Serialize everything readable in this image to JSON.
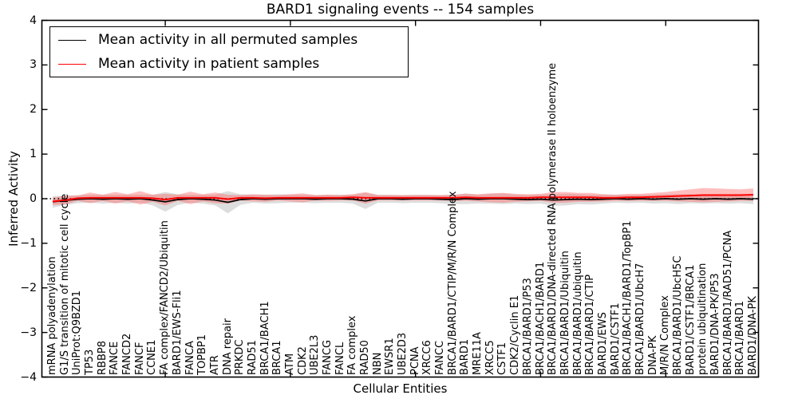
{
  "chart_data": {
    "type": "line",
    "title": "BARD1 signaling events -- 154 samples",
    "xlabel": "Cellular Entities",
    "ylabel": "Inferred Activity",
    "ylim": [
      -4,
      4
    ],
    "yticks": [
      4,
      3,
      2,
      1,
      0,
      -1,
      -2,
      -3,
      -4
    ],
    "ytick_labels": [
      "4",
      "3",
      "2",
      "1",
      "0",
      "−1",
      "−2",
      "−3",
      "−4"
    ],
    "x_major_ticks": [
      10,
      20,
      30,
      40,
      50
    ],
    "grid": false,
    "legend_position": "upper left",
    "zero_line": {
      "value": 0,
      "style": "dotted",
      "color": "#000000"
    },
    "categories": [
      "mRNA polyadenylation",
      "G1/S transition of mitotic cell cycle",
      "UniProt:Q9BZD1",
      "TP53",
      "RBBP8",
      "FANCE",
      "FANCD2",
      "FANCF",
      "CCNE1",
      "FA complex/FANCD2/Ubiquitin",
      "BARD1/EWS-Fli1",
      "FANCA",
      "TOPBP1",
      "ATR",
      "DNA repair",
      "PRKDC",
      "RAD51",
      "BRCA1/BACH1",
      "BRCA1",
      "ATM",
      "CDK2",
      "UBE2L3",
      "FANCG",
      "FANCL",
      "FA complex",
      "RAD50",
      "NBN",
      "EWSR1",
      "UBE2D3",
      "PCNA",
      "XRCC6",
      "FANCC",
      "BRCA1/BARD1/CTIP/M/R/N Complex",
      "BARD1",
      "MRE11A",
      "XRCC5",
      "CSTF1",
      "CDK2/Cyclin E1",
      "BRCA1/BARD1/P53",
      "BRCA1/BACH1/BARD1",
      "BRCA1/BARD1/DNA-directed RNA polymerase II holoenzyme",
      "BRCA1/BARD1/Ubiquitin",
      "BRCA1/BARD1/ubiquitin",
      "BRCA1/BARD1/CTIP",
      "BARD1/EWS",
      "BARD1/CSTF1",
      "BRCA1/BACH1/BARD1/TopBP1",
      "BRCA1/BARD1/UbcH7",
      "DNA-PK",
      "M/R/N Complex",
      "BRCA1/BARD1/UbcH5C",
      "BARD1/CSTF1/BRCA1",
      "protein ubiquitination",
      "BARD1/DNA-PK/P53",
      "BRCA1/BARD1/RAD51/PCNA",
      "BRCA1/BARD1",
      "BARD1/DNA-PK"
    ],
    "series": [
      {
        "name": "Mean activity in all permuted samples",
        "color": "#000000",
        "band_color": "#bbbbbb",
        "band_opacity": 0.5,
        "values": [
          -0.07,
          -0.04,
          -0.01,
          0,
          -0.01,
          0,
          -0.01,
          0,
          -0.03,
          -0.07,
          -0.02,
          0,
          -0.01,
          -0.03,
          -0.08,
          -0.02,
          0,
          -0.01,
          0,
          0,
          0,
          -0.01,
          0,
          0,
          -0.01,
          -0.05,
          0,
          0,
          -0.01,
          0,
          0,
          -0.01,
          -0.02,
          0,
          -0.01,
          0,
          0,
          -0.01,
          -0.02,
          -0.01,
          -0.03,
          -0.02,
          -0.01,
          -0.02,
          -0.01,
          0,
          -0.01,
          0,
          -0.01,
          0,
          -0.01,
          0,
          -0.01,
          0,
          -0.01,
          0,
          -0.01
        ],
        "band": [
          0.13,
          0.1,
          0.09,
          0.09,
          0.1,
          0.09,
          0.1,
          0.09,
          0.12,
          0.22,
          0.12,
          0.09,
          0.1,
          0.12,
          0.25,
          0.12,
          0.09,
          0.1,
          0.1,
          0.09,
          0.09,
          0.09,
          0.09,
          0.09,
          0.1,
          0.18,
          0.09,
          0.09,
          0.09,
          0.09,
          0.09,
          0.09,
          0.1,
          0.12,
          0.1,
          0.11,
          0.12,
          0.1,
          0.1,
          0.1,
          0.13,
          0.13,
          0.11,
          0.11,
          0.1,
          0.09,
          0.09,
          0.09,
          0.1,
          0.1,
          0.11,
          0.1,
          0.1,
          0.1,
          0.1,
          0.1,
          0.11
        ]
      },
      {
        "name": "Mean activity in patient samples",
        "color": "#ff0000",
        "band_color": "#ff5555",
        "band_opacity": 0.38,
        "values": [
          -0.06,
          -0.03,
          0.01,
          0.02,
          0.02,
          0.02,
          0.02,
          0.02,
          0.01,
          -0.02,
          0.02,
          0.02,
          0.02,
          0.02,
          -0.01,
          0.02,
          0.02,
          0.01,
          0.02,
          0.02,
          0.02,
          0.02,
          0.02,
          0.02,
          0.03,
          0.02,
          0.02,
          0.02,
          0.02,
          0.02,
          0.02,
          0.02,
          0.02,
          0.03,
          0.02,
          0.02,
          0.02,
          0.02,
          0.02,
          0.03,
          0.03,
          0.03,
          0.03,
          0.03,
          0.02,
          0.02,
          0.03,
          0.03,
          0.04,
          0.05,
          0.06,
          0.07,
          0.08,
          0.08,
          0.08,
          0.08,
          0.09
        ],
        "band": [
          0.08,
          0.1,
          0.06,
          0.12,
          0.07,
          0.13,
          0.08,
          0.15,
          0.08,
          0.13,
          0.07,
          0.14,
          0.08,
          0.12,
          0.1,
          0.06,
          0.08,
          0.08,
          0.06,
          0.08,
          0.1,
          0.06,
          0.07,
          0.06,
          0.07,
          0.13,
          0.06,
          0.06,
          0.06,
          0.06,
          0.06,
          0.06,
          0.07,
          0.08,
          0.08,
          0.1,
          0.11,
          0.09,
          0.08,
          0.08,
          0.12,
          0.12,
          0.1,
          0.1,
          0.08,
          0.07,
          0.08,
          0.08,
          0.09,
          0.1,
          0.12,
          0.14,
          0.16,
          0.15,
          0.14,
          0.13,
          0.14
        ]
      }
    ]
  }
}
